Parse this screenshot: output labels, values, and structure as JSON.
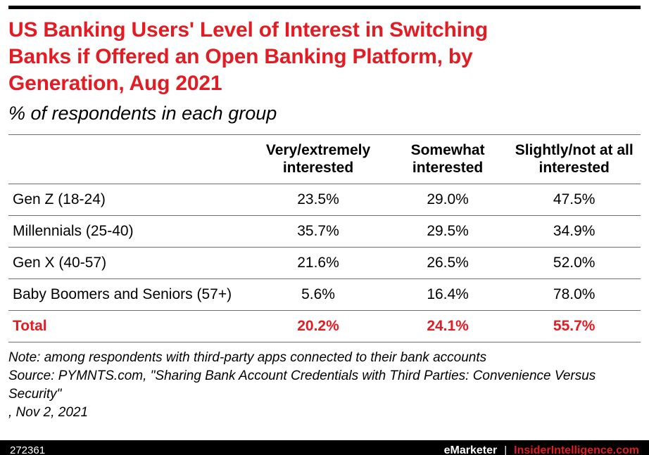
{
  "colors": {
    "accent_red": "#e31b23",
    "footer_bg": "#000000",
    "rule_gray": "#6e6e6e"
  },
  "header": {
    "title_lines": [
      "US Banking Users' Level of Interest in Switching",
      "Banks if Offered an Open Banking Platform, by",
      "Generation, Aug 2021"
    ],
    "subtitle": "% of respondents in each group"
  },
  "chart_data": {
    "type": "table",
    "title": "US Banking Users' Level of Interest in Switching Banks if Offered an Open Banking Platform, by Generation, Aug 2021",
    "subtitle": "% of respondents in each group",
    "unit": "% of respondents in each group",
    "columns": [
      "Very/extremely interested",
      "Somewhat interested",
      "Slightly/not at all interested"
    ],
    "rows": [
      {
        "label": "Gen Z (18-24)",
        "values": [
          23.5,
          29.0,
          47.5
        ],
        "display": [
          "23.5%",
          "29.0%",
          "47.5%"
        ]
      },
      {
        "label": "Millennials (25-40)",
        "values": [
          35.7,
          29.5,
          34.9
        ],
        "display": [
          "35.7%",
          "29.5%",
          "34.9%"
        ]
      },
      {
        "label": "Gen X (40-57)",
        "values": [
          21.6,
          26.5,
          52.0
        ],
        "display": [
          "21.6%",
          "26.5%",
          "52.0%"
        ]
      },
      {
        "label": "Baby Boomers and Seniors (57+)",
        "values": [
          5.6,
          16.4,
          78.0
        ],
        "display": [
          "5.6%",
          "16.4%",
          "78.0%"
        ]
      },
      {
        "label": "Total",
        "values": [
          20.2,
          24.1,
          55.7
        ],
        "display": [
          "20.2%",
          "24.1%",
          "55.7%"
        ],
        "emphasis": true
      }
    ]
  },
  "notes": {
    "note": "Note: among respondents with third-party apps connected to their bank accounts",
    "source": "Source: PYMNTS.com, \"Sharing Bank Account Credentials with Third Parties: Convenience Versus Security\"",
    "date": ", Nov 2, 2021"
  },
  "footer": {
    "chart_id": "272361",
    "brand": "eMarketer",
    "divider": "|",
    "site": "InsiderIntelligence.com"
  }
}
